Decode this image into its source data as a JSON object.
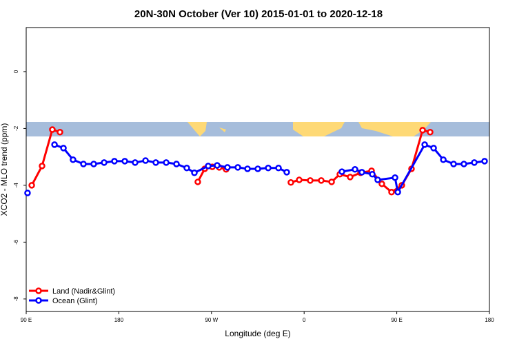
{
  "chart_data": {
    "type": "line",
    "title": "20N-30N October (Ver 10)   2015-01-01 to 2020-12-18",
    "x_label": "Longitude (deg E)",
    "y_label": "XCO2 - MLO trend (ppm)",
    "xlim": [
      90,
      540
    ],
    "xticks": [
      {
        "value": 90,
        "label": "90 E"
      },
      {
        "value": 180,
        "label": "180"
      },
      {
        "value": 270,
        "label": "90 W"
      },
      {
        "value": 360,
        "label": "0"
      },
      {
        "value": 450,
        "label": "90 E"
      },
      {
        "value": 540,
        "label": "180"
      }
    ],
    "ylim": [
      -8.44,
      1.55
    ],
    "yticks": [
      0,
      -2,
      -4,
      -6,
      -8
    ],
    "legend": "bottom-left",
    "series": [
      {
        "name": "Land (Nadir&Glint)",
        "color": "#ff0000",
        "x": [
          95.4,
          105.4,
          115.4,
          122.8,
          null,
          256.7,
          263.4,
          270.8,
          277.5,
          284.2,
          null,
          347.1,
          355.2,
          365.9,
          376.6,
          386.7,
          394.7,
          404.7,
          414.8,
          425.5,
          435.5,
          444.9,
          454.9,
          464.3,
          475.1,
          482.4
        ],
        "values": [
          -4.0,
          -3.32,
          -2.04,
          -2.13,
          null,
          -3.88,
          -3.42,
          -3.35,
          -3.37,
          -3.44,
          null,
          -3.9,
          -3.81,
          -3.83,
          -3.83,
          -3.88,
          -3.61,
          -3.71,
          -3.56,
          -3.49,
          -3.95,
          -4.24,
          -4.0,
          -3.42,
          -2.06,
          -2.13
        ]
      },
      {
        "name": "Ocean (Glint)",
        "color": "#0000ff",
        "x": [
          91.3,
          null,
          117.5,
          126.2,
          135.5,
          145.6,
          155.6,
          165.7,
          175.7,
          185.8,
          195.8,
          205.9,
          215.9,
          226.0,
          236.0,
          246.0,
          253.4,
          266.8,
          275.5,
          285.5,
          295.6,
          305.0,
          315.0,
          325.1,
          335.1,
          343.1,
          null,
          396.7,
          409.4,
          416.1,
          426.2,
          431.5,
          448.3,
          451.0,
          477.1,
          485.8,
          495.2,
          505.2,
          515.2,
          525.3,
          535.3
        ],
        "values": [
          -4.27,
          null,
          -2.57,
          -2.69,
          -3.1,
          -3.25,
          -3.25,
          -3.2,
          -3.15,
          -3.15,
          -3.2,
          -3.13,
          -3.2,
          -3.2,
          -3.25,
          -3.39,
          -3.56,
          -3.32,
          -3.3,
          -3.37,
          -3.37,
          -3.42,
          -3.42,
          -3.39,
          -3.39,
          -3.54,
          null,
          -3.52,
          -3.44,
          -3.54,
          -3.61,
          -3.81,
          -3.73,
          -4.24,
          -2.57,
          -2.69,
          -3.1,
          -3.25,
          -3.25,
          -3.2,
          -3.15
        ]
      }
    ]
  }
}
